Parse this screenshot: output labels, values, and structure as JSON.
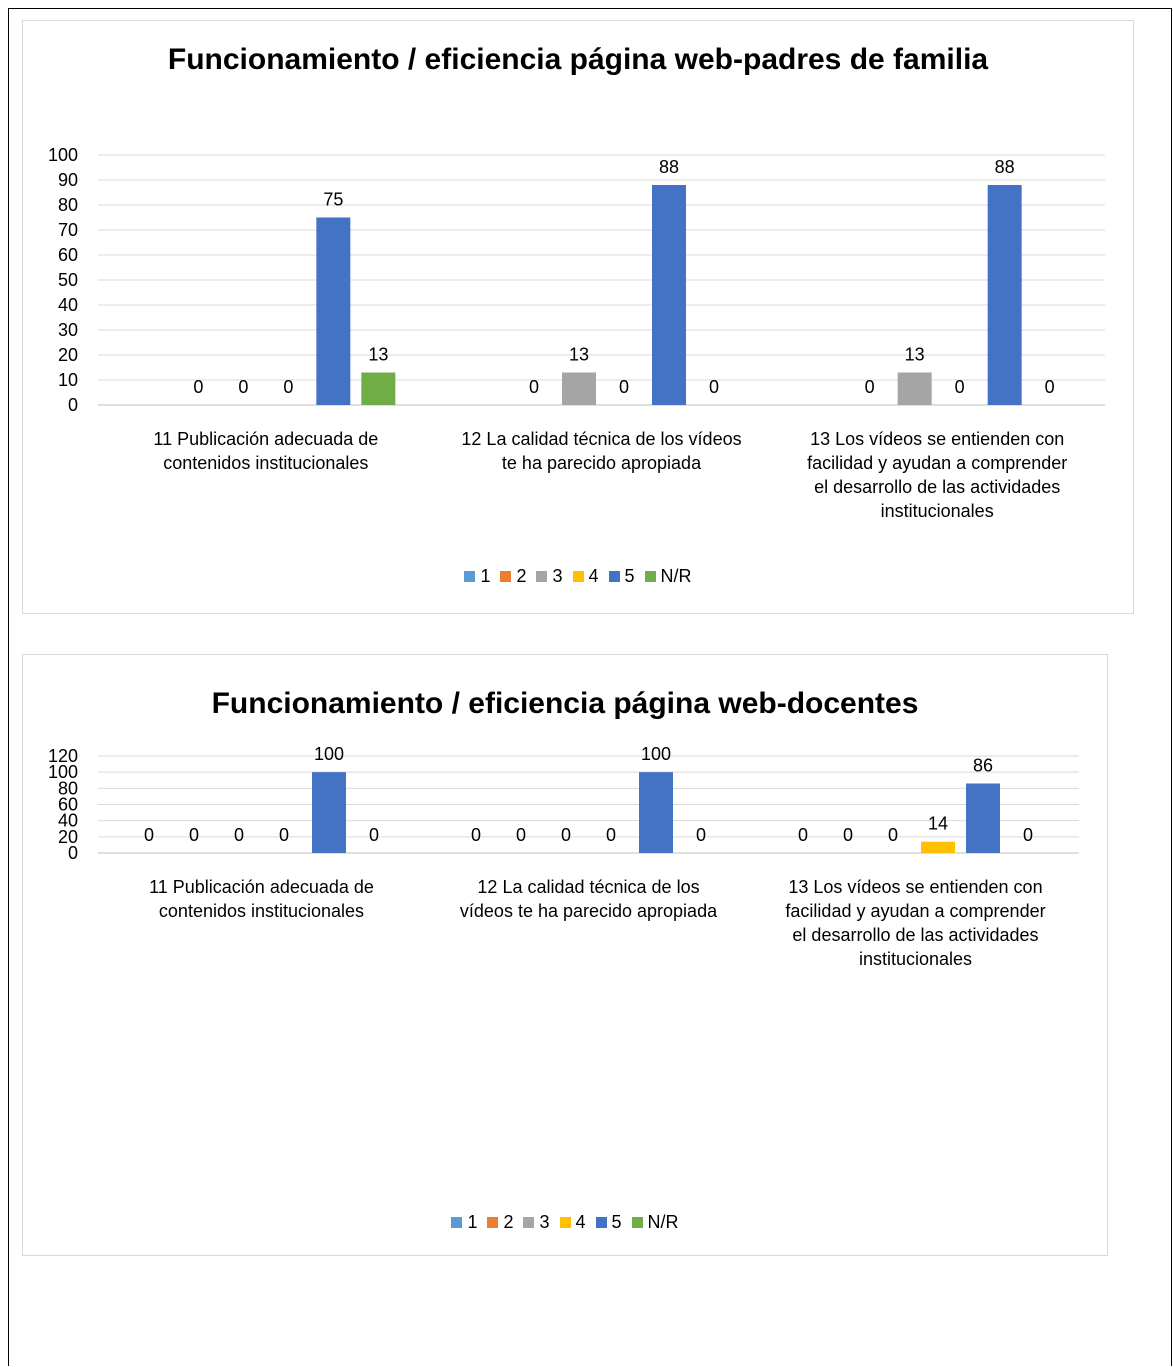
{
  "chart_data": [
    {
      "type": "bar",
      "title": "Funcionamiento / eficiencia página web-padres de familia",
      "categories": [
        "11 Publicación adecuada de contenidos institucionales",
        "12 La calidad técnica de los vídeos te ha parecido apropiada",
        "13 Los vídeos se entienden con facilidad y ayudan a comprender el desarrollo de las actividades institucionales"
      ],
      "category_lines": [
        [
          "11 Publicación adecuada de",
          "contenidos institucionales"
        ],
        [
          "12 La calidad técnica de los vídeos",
          "te ha parecido apropiada"
        ],
        [
          "13 Los vídeos se entienden con",
          "facilidad y ayudan a comprender",
          "el desarrollo de las actividades",
          "institucionales"
        ]
      ],
      "series": [
        {
          "name": "1",
          "color": "#5B9BD5",
          "values": [
            null,
            null,
            null
          ]
        },
        {
          "name": "2",
          "color": "#ED7D31",
          "values": [
            0,
            0,
            0
          ]
        },
        {
          "name": "3",
          "color": "#A5A5A5",
          "values": [
            0,
            13,
            13
          ]
        },
        {
          "name": "4",
          "color": "#FFC000",
          "values": [
            0,
            0,
            0
          ]
        },
        {
          "name": "5",
          "color": "#4472C4",
          "values": [
            75,
            88,
            88
          ]
        },
        {
          "name": "N/R",
          "color": "#70AD47",
          "values": [
            13,
            0,
            0
          ]
        }
      ],
      "ylim": [
        0,
        100
      ],
      "yticks": [
        0,
        10,
        20,
        30,
        40,
        50,
        60,
        70,
        80,
        90,
        100
      ],
      "grid": true,
      "legend": "bottom"
    },
    {
      "type": "bar",
      "title": "Funcionamiento / eficiencia página web-docentes",
      "categories": [
        "11 Publicación adecuada de contenidos institucionales",
        "12 La calidad técnica de los vídeos te ha parecido apropiada",
        "13 Los vídeos se entienden con facilidad y ayudan a comprender el desarrollo de las actividades institucionales"
      ],
      "category_lines": [
        [
          "11 Publicación adecuada de",
          "contenidos institucionales"
        ],
        [
          "12 La calidad técnica de los",
          "vídeos te ha parecido apropiada"
        ],
        [
          "13 Los vídeos se entienden con",
          "facilidad y ayudan a comprender",
          "el desarrollo de las actividades",
          "institucionales"
        ]
      ],
      "series": [
        {
          "name": "1",
          "color": "#5B9BD5",
          "values": [
            0,
            0,
            0
          ]
        },
        {
          "name": "2",
          "color": "#ED7D31",
          "values": [
            0,
            0,
            0
          ]
        },
        {
          "name": "3",
          "color": "#A5A5A5",
          "values": [
            0,
            0,
            0
          ]
        },
        {
          "name": "4",
          "color": "#FFC000",
          "values": [
            0,
            0,
            14
          ]
        },
        {
          "name": "5",
          "color": "#4472C4",
          "values": [
            100,
            100,
            86
          ]
        },
        {
          "name": "N/R",
          "color": "#70AD47",
          "values": [
            0,
            0,
            0
          ]
        }
      ],
      "ylim": [
        0,
        120
      ],
      "yticks": [
        0,
        20,
        40,
        60,
        80,
        100,
        120
      ],
      "grid": true,
      "legend": "bottom"
    }
  ]
}
